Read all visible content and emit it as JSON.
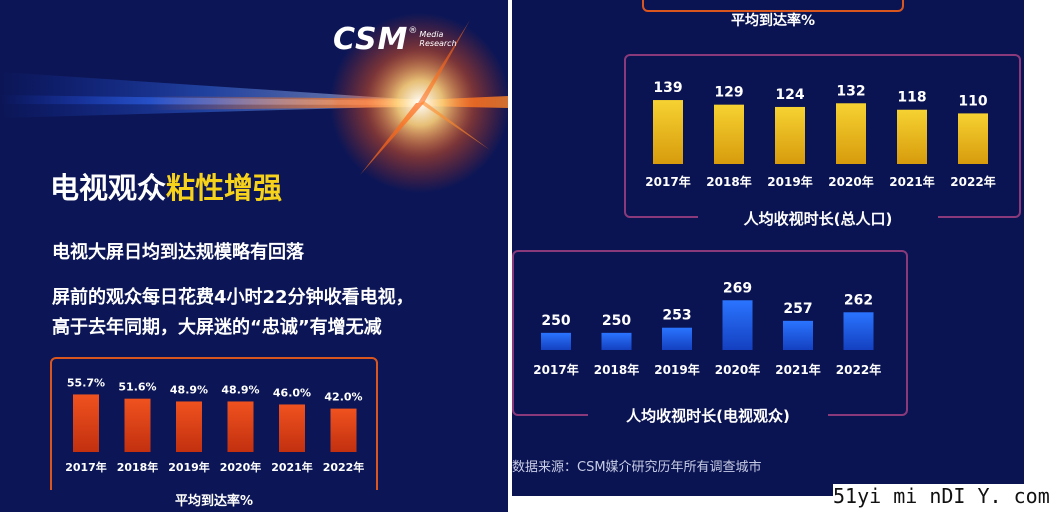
{
  "header": {
    "logo_main": "CSM",
    "logo_reg": "®",
    "logo_sub_1": "Media",
    "logo_sub_2": "Research"
  },
  "title": {
    "plain": "电视观众",
    "highlight": "粘性增强"
  },
  "subtitles": [
    "电视大屏日均到达规模略有回落",
    "屏前的观众每日花费4小时22分钟收看电视，",
    "高于去年同期，大屏迷的“忠诚”有增无减"
  ],
  "top_cut_caption": "平均到达率%",
  "source": "数据来源：CSM媒介研究历年所有调查城市",
  "watermark": "51yi mi nDI Y. com",
  "colors": {
    "background": "#0c1656",
    "title_highlight": "#f7d21a",
    "reach_bar": "#e0411b",
    "time_total_bar": "#f2c21b",
    "time_viewers_bar": "#1a5de8",
    "frame_orange": "#d9561f",
    "frame_purple": "#8a3a7a"
  },
  "chart_data": [
    {
      "type": "bar",
      "categories": [
        "2017年",
        "2018年",
        "2019年",
        "2020年",
        "2021年",
        "2022年"
      ],
      "values": [
        55.7,
        51.6,
        48.9,
        48.9,
        46.0,
        42.0
      ],
      "labels": [
        "55.7%",
        "51.6%",
        "48.9%",
        "48.9%",
        "46.0%",
        "42.0%"
      ],
      "title": "平均到达率%",
      "ylim": [
        0,
        60
      ],
      "grid": false
    },
    {
      "type": "bar",
      "categories": [
        "2017年",
        "2018年",
        "2019年",
        "2020年",
        "2021年",
        "2022年"
      ],
      "values": [
        139,
        129,
        124,
        132,
        118,
        110
      ],
      "labels": [
        "139",
        "129",
        "124",
        "132",
        "118",
        "110"
      ],
      "title": "人均收视时长(总人口)",
      "ylim": [
        0,
        150
      ],
      "grid": false
    },
    {
      "type": "bar",
      "categories": [
        "2017年",
        "2018年",
        "2019年",
        "2020年",
        "2021年",
        "2022年"
      ],
      "values": [
        250,
        250,
        253,
        269,
        257,
        262
      ],
      "labels": [
        "250",
        "250",
        "253",
        "269",
        "257",
        "262"
      ],
      "title": "人均收视时长(电视观众)",
      "ylim": [
        240,
        275
      ],
      "grid": false
    }
  ]
}
